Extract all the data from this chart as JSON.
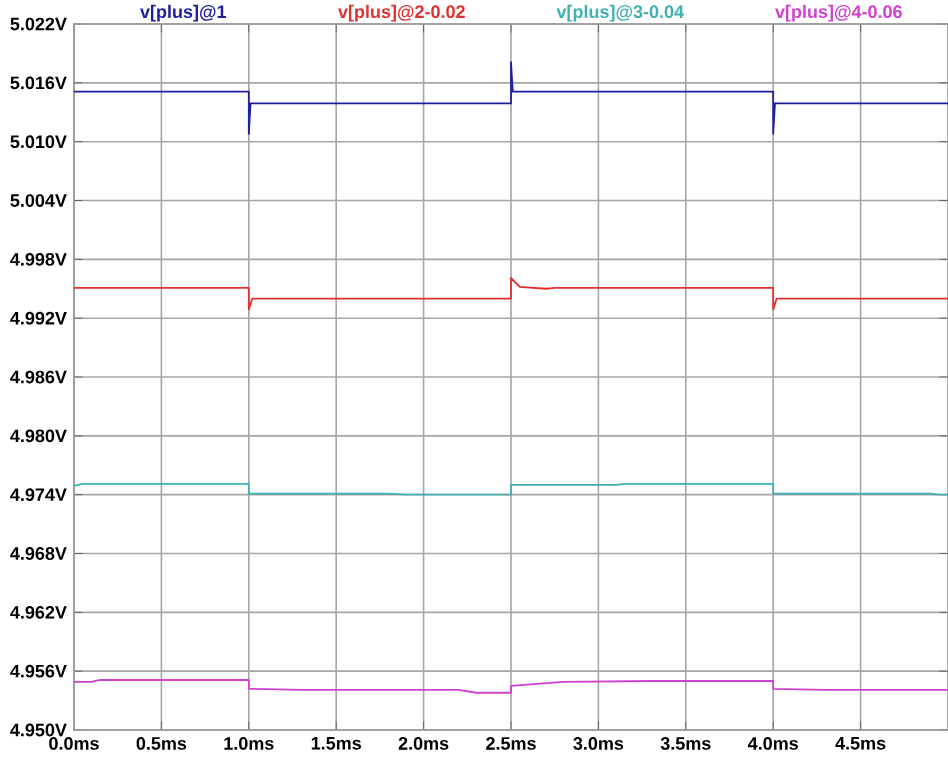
{
  "chart_data": {
    "type": "line",
    "grid": true,
    "xlim": [
      0,
      5
    ],
    "xticks": [
      {
        "value": 0,
        "label": "0.0ms"
      },
      {
        "value": 0.5,
        "label": "0.5ms"
      },
      {
        "value": 1,
        "label": "1.0ms"
      },
      {
        "value": 1.5,
        "label": "1.5ms"
      },
      {
        "value": 2,
        "label": "2.0ms"
      },
      {
        "value": 2.5,
        "label": "2.5ms"
      },
      {
        "value": 3,
        "label": "3.0ms"
      },
      {
        "value": 3.5,
        "label": "3.5ms"
      },
      {
        "value": 4,
        "label": "4.0ms"
      },
      {
        "value": 4.5,
        "label": "4.5ms"
      }
    ],
    "ylim": [
      4.95,
      5.022
    ],
    "yticks": [
      {
        "value": 4.95,
        "label": "4.950V"
      },
      {
        "value": 4.956,
        "label": "4.956V"
      },
      {
        "value": 4.962,
        "label": "4.962V"
      },
      {
        "value": 4.968,
        "label": "4.968V"
      },
      {
        "value": 4.974,
        "label": "4.974V"
      },
      {
        "value": 4.98,
        "label": "4.980V"
      },
      {
        "value": 4.986,
        "label": "4.986V"
      },
      {
        "value": 4.992,
        "label": "4.992V"
      },
      {
        "value": 4.998,
        "label": "4.998V"
      },
      {
        "value": 5.004,
        "label": "5.004V"
      },
      {
        "value": 5.01,
        "label": "5.010V"
      },
      {
        "value": 5.016,
        "label": "5.016V"
      },
      {
        "value": 5.022,
        "label": "5.022V"
      }
    ],
    "series": [
      {
        "name": "v[plus]@1",
        "color": "#1f1f9f",
        "x": [
          0,
          1,
          1,
          1.01,
          2.5,
          2.5,
          2.51,
          4,
          4,
          4.01,
          5
        ],
        "values": [
          5.0151,
          5.0151,
          5.0108,
          5.0139,
          5.0139,
          5.0181,
          5.0151,
          5.0151,
          5.0108,
          5.0139,
          5.0139
        ]
      },
      {
        "name": "v[plus]@2-0.02",
        "color": "#e03030",
        "x": [
          0,
          1,
          1,
          1.02,
          2.5,
          2.5,
          2.55,
          2.7,
          2.75,
          4,
          4,
          4.02,
          5
        ],
        "values": [
          4.9951,
          4.9951,
          4.9929,
          4.994,
          4.994,
          4.9961,
          4.9952,
          4.995,
          4.9951,
          4.9951,
          4.9929,
          4.994,
          4.994
        ]
      },
      {
        "name": "v[plus]@3-0.04",
        "color": "#40b0b0",
        "x": [
          0,
          0.05,
          1,
          1,
          1.8,
          1.9,
          2.5,
          2.5,
          3.1,
          3.15,
          4,
          4,
          4.9,
          4.95,
          5
        ],
        "values": [
          4.9749,
          4.9751,
          4.9751,
          4.9741,
          4.9741,
          4.974,
          4.974,
          4.975,
          4.975,
          4.9751,
          4.9751,
          4.9741,
          4.9741,
          4.974,
          4.974
        ]
      },
      {
        "name": "v[plus]@4-0.06",
        "color": "#d040d0",
        "x": [
          0,
          0.1,
          0.15,
          1,
          1,
          1.3,
          2.2,
          2.3,
          2.5,
          2.5,
          2.8,
          3.3,
          4,
          4,
          4.3,
          5
        ],
        "values": [
          4.9549,
          4.9549,
          4.9551,
          4.9551,
          4.9542,
          4.9541,
          4.9541,
          4.9538,
          4.9538,
          4.9545,
          4.9549,
          4.955,
          4.955,
          4.9542,
          4.9541,
          4.9541
        ]
      }
    ]
  }
}
